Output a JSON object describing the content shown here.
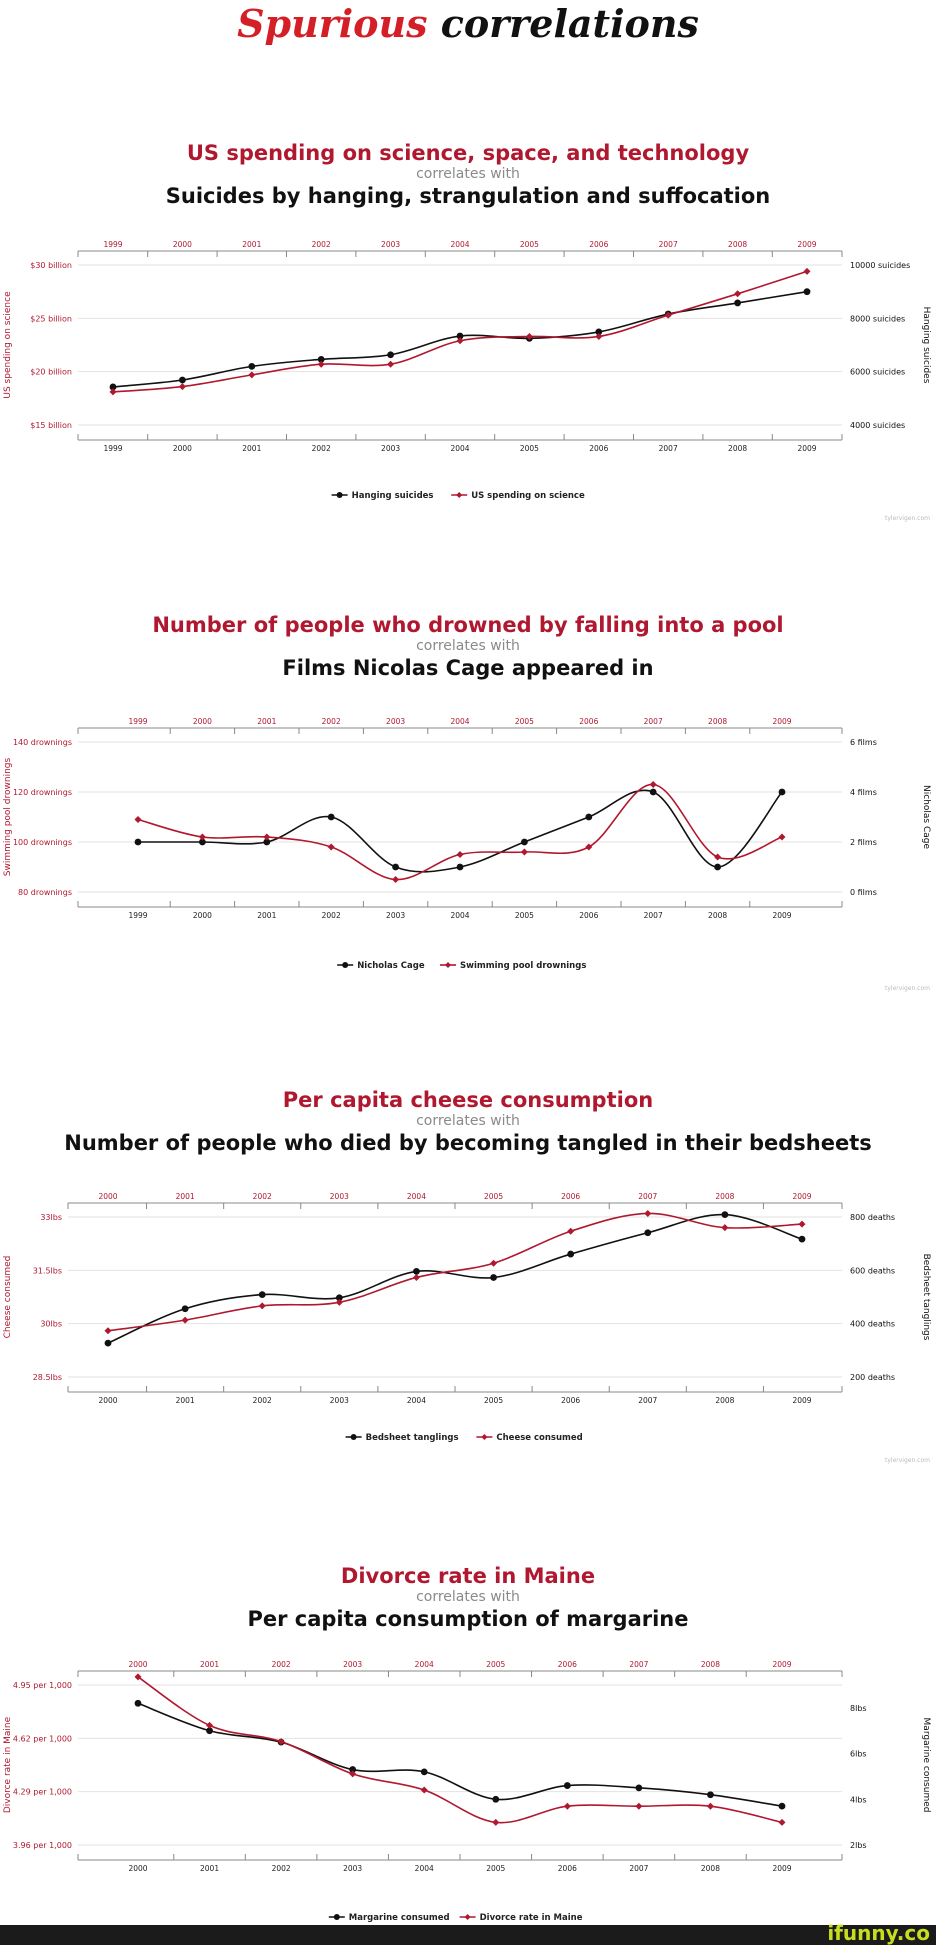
{
  "page": {
    "title_part1": "Spurious",
    "title_part2": "correlations",
    "watermark": "ifunny.co"
  },
  "chart_data": [
    {
      "type": "line",
      "title": "US spending on science, space, and technology",
      "connector": "correlates with",
      "subtitle": "Suicides by hanging, strangulation and suffocation",
      "x": [
        "1999",
        "2000",
        "2001",
        "2002",
        "2003",
        "2004",
        "2005",
        "2006",
        "2007",
        "2008",
        "2009"
      ],
      "left_axis": {
        "label": "US spending on science",
        "ticks": [
          "$30 billion",
          "$25 billion",
          "$20 billion",
          "$15 billion"
        ],
        "tick_values": [
          30,
          25,
          20,
          15
        ],
        "range": [
          15,
          30
        ],
        "color": "#b0182f"
      },
      "right_axis": {
        "label": "Hanging suicides",
        "ticks": [
          "10000 suicides",
          "8000 suicides",
          "6000 suicides",
          "4000 suicides"
        ],
        "tick_values": [
          10000,
          8000,
          6000,
          4000
        ],
        "range": [
          4000,
          10000
        ],
        "color": "#111111"
      },
      "series": [
        {
          "name": "Hanging suicides",
          "axis": "right",
          "color": "#111111",
          "values": [
            5427,
            5688,
            6198,
            6462,
            6635,
            7336,
            7248,
            7491,
            8161,
            8578,
            9000
          ]
        },
        {
          "name": "US spending on science",
          "axis": "left",
          "color": "#b0182f",
          "values": [
            18.1,
            18.6,
            19.7,
            20.7,
            20.7,
            22.9,
            23.3,
            23.3,
            25.3,
            27.3,
            29.4
          ]
        }
      ],
      "legend": [
        "Hanging suicides",
        "US spending on science"
      ],
      "source": "tylervigen.com"
    },
    {
      "type": "line",
      "title": "Number of people who drowned by falling into a pool",
      "connector": "correlates with",
      "subtitle": "Films Nicolas Cage appeared in",
      "x": [
        "1999",
        "2000",
        "2001",
        "2002",
        "2003",
        "2004",
        "2005",
        "2006",
        "2007",
        "2008",
        "2009"
      ],
      "left_axis": {
        "label": "Swimming pool drownings",
        "ticks": [
          "140 drownings",
          "120 drownings",
          "100 drownings",
          "80 drownings"
        ],
        "tick_values": [
          140,
          120,
          100,
          80
        ],
        "range": [
          80,
          140
        ],
        "color": "#b0182f"
      },
      "right_axis": {
        "label": "Nicholas Cage",
        "ticks": [
          "6 films",
          "4 films",
          "2 films",
          "0 films"
        ],
        "tick_values": [
          6,
          4,
          2,
          0
        ],
        "range": [
          0,
          6
        ],
        "color": "#111111"
      },
      "series": [
        {
          "name": "Nicholas Cage",
          "axis": "right",
          "color": "#111111",
          "values": [
            2,
            2,
            2,
            3,
            1,
            1,
            2,
            3,
            4,
            1,
            4
          ]
        },
        {
          "name": "Swimming pool drownings",
          "axis": "left",
          "color": "#b0182f",
          "values": [
            109,
            102,
            102,
            98,
            85,
            95,
            96,
            98,
            123,
            94,
            102
          ]
        }
      ],
      "legend": [
        "Nicholas Cage",
        "Swimming pool drownings"
      ],
      "source": "tylervigen.com"
    },
    {
      "type": "line",
      "title": "Per capita cheese consumption",
      "connector": "correlates with",
      "subtitle": "Number of people who died by becoming tangled in their bedsheets",
      "x": [
        "2000",
        "2001",
        "2002",
        "2003",
        "2004",
        "2005",
        "2006",
        "2007",
        "2008",
        "2009"
      ],
      "left_axis": {
        "label": "Cheese consumed",
        "ticks": [
          "33lbs",
          "31.5lbs",
          "30lbs",
          "28.5lbs"
        ],
        "tick_values": [
          33,
          31.5,
          30,
          28.5
        ],
        "range": [
          28.5,
          33
        ],
        "color": "#b0182f"
      },
      "right_axis": {
        "label": "Bedsheet tanglings",
        "ticks": [
          "800 deaths",
          "600 deaths",
          "400 deaths",
          "200 deaths"
        ],
        "tick_values": [
          800,
          600,
          400,
          200
        ],
        "range": [
          200,
          800
        ],
        "color": "#111111"
      },
      "series": [
        {
          "name": "Bedsheet tanglings",
          "axis": "right",
          "color": "#111111",
          "values": [
            327,
            456,
            509,
            497,
            596,
            573,
            661,
            741,
            809,
            717
          ]
        },
        {
          "name": "Cheese consumed",
          "axis": "left",
          "color": "#b0182f",
          "values": [
            29.8,
            30.1,
            30.5,
            30.6,
            31.3,
            31.7,
            32.6,
            33.1,
            32.7,
            32.8
          ]
        }
      ],
      "legend": [
        "Bedsheet tanglings",
        "Cheese consumed"
      ],
      "source": "tylervigen.com"
    },
    {
      "type": "line",
      "title": "Divorce rate in Maine",
      "connector": "correlates with",
      "subtitle": "Per capita consumption of margarine",
      "x": [
        "2000",
        "2001",
        "2002",
        "2003",
        "2004",
        "2005",
        "2006",
        "2007",
        "2008",
        "2009"
      ],
      "left_axis": {
        "label": "Divorce rate in Maine",
        "ticks": [
          "4.95 per 1,000",
          "4.62 per 1,000",
          "4.29 per 1,000",
          "3.96 per 1,000"
        ],
        "tick_values": [
          4.95,
          4.62,
          4.29,
          3.96
        ],
        "range": [
          3.96,
          4.95
        ],
        "color": "#b0182f"
      },
      "right_axis": {
        "label": "Margarine consumed",
        "ticks": [
          "8lbs",
          "6lbs",
          "4lbs",
          "2lbs"
        ],
        "tick_values": [
          8,
          6,
          4,
          2
        ],
        "range": [
          2,
          9
        ],
        "color": "#111111"
      },
      "series": [
        {
          "name": "Margarine consumed",
          "axis": "right",
          "color": "#111111",
          "values": [
            8.2,
            7,
            6.5,
            5.3,
            5.2,
            4,
            4.6,
            4.5,
            4.2,
            3.7
          ]
        },
        {
          "name": "Divorce rate in Maine",
          "axis": "left",
          "color": "#b0182f",
          "values": [
            5,
            4.7,
            4.6,
            4.4,
            4.3,
            4.1,
            4.2,
            4.2,
            4.2,
            4.1
          ]
        }
      ],
      "legend": [
        "Margarine consumed",
        "Divorce rate in Maine"
      ],
      "source": ""
    }
  ]
}
